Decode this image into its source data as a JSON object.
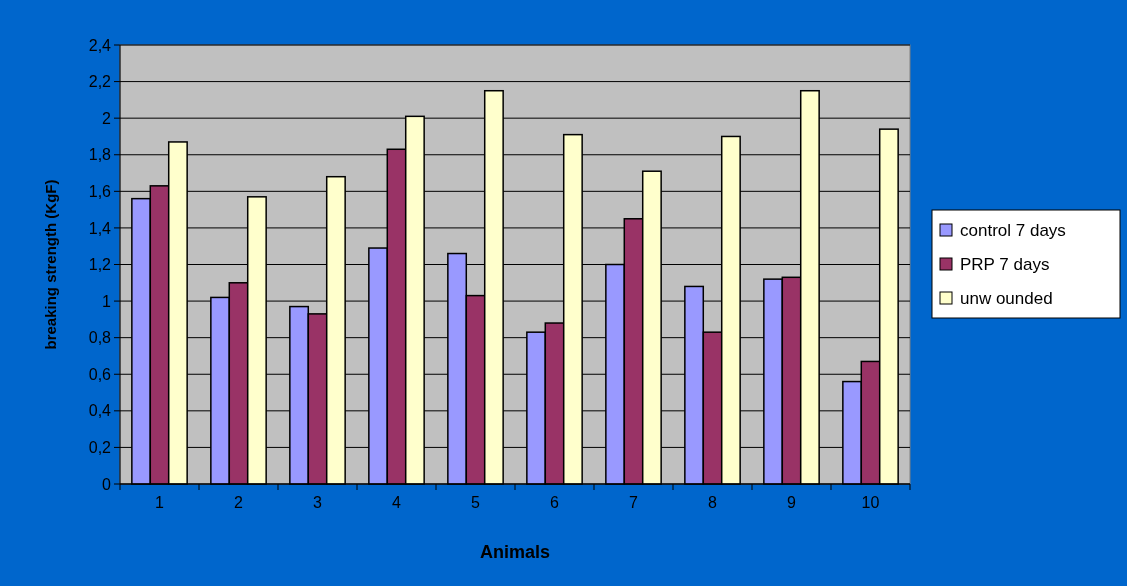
{
  "chart_data": {
    "type": "bar",
    "xlabel": "Animals",
    "ylabel": "breaking strength (KgF)",
    "categories": [
      "1",
      "2",
      "3",
      "4",
      "5",
      "6",
      "7",
      "8",
      "9",
      "10"
    ],
    "series": [
      {
        "name": "control 7 days",
        "color": "#9999ff",
        "values": [
          1.56,
          1.02,
          0.97,
          1.29,
          1.26,
          0.83,
          1.2,
          1.08,
          1.12,
          0.56
        ]
      },
      {
        "name": "PRP 7 days",
        "color": "#993366",
        "values": [
          1.63,
          1.1,
          0.93,
          1.83,
          1.03,
          0.88,
          1.45,
          0.83,
          1.13,
          0.67
        ]
      },
      {
        "name": "unw ounded",
        "color": "#ffffcc",
        "values": [
          1.87,
          1.57,
          1.68,
          2.01,
          2.15,
          1.91,
          1.71,
          1.9,
          2.15,
          1.94
        ]
      }
    ],
    "ylim": [
      0,
      2.4
    ],
    "yticks": [
      0,
      {
        "value": 0.2,
        "label": "0,2"
      },
      {
        "value": 0.4,
        "label": "0,4"
      },
      {
        "value": 0.6,
        "label": "0,6"
      },
      {
        "value": 0.8,
        "label": "0,8"
      },
      1,
      {
        "value": 1.2,
        "label": "1,2"
      },
      {
        "value": 1.4,
        "label": "1,4"
      },
      {
        "value": 1.6,
        "label": "1,6"
      },
      {
        "value": 1.8,
        "label": "1,8"
      },
      2,
      {
        "value": 2.2,
        "label": "2,2"
      },
      {
        "value": 2.4,
        "label": "2,4"
      }
    ],
    "grid": "y",
    "legend": "right"
  }
}
